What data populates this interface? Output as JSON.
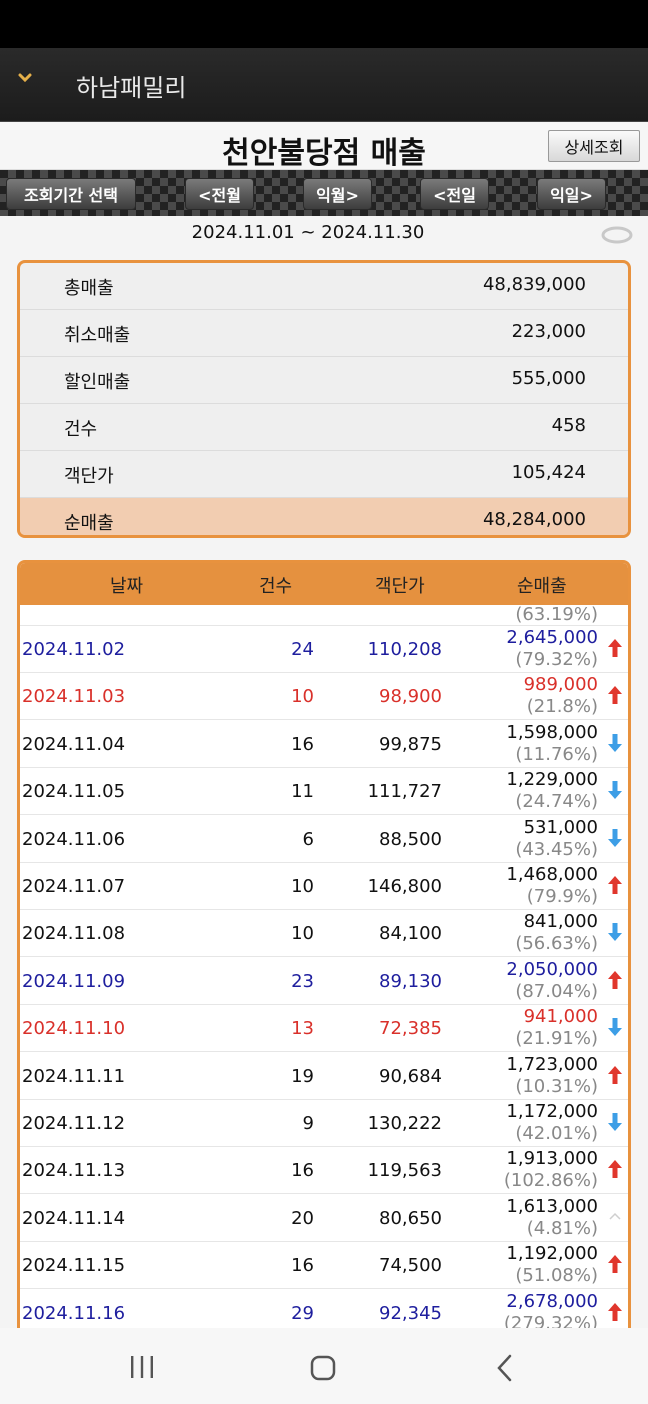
{
  "app": {
    "title": "하남패밀리"
  },
  "header": {
    "title": "천안불당점 매출",
    "detail_label": "상세조회"
  },
  "nav": {
    "period_select": "조회기간 선택",
    "prev_month": "<전월",
    "next_month": "익월>",
    "prev_day": "<전일",
    "next_day": "익일>"
  },
  "date_range": "2024.11.01 ~ 2024.11.30",
  "summary": [
    {
      "label": "총매출",
      "value": "48,839,000"
    },
    {
      "label": "취소매출",
      "value": "223,000"
    },
    {
      "label": "할인매출",
      "value": "555,000"
    },
    {
      "label": "건수",
      "value": "458"
    },
    {
      "label": "객단가",
      "value": "105,424"
    },
    {
      "label": "순매출",
      "value": "48,284,000"
    }
  ],
  "daily_table": {
    "headers": {
      "date": "날짜",
      "count": "건수",
      "avg": "객단가",
      "net": "순매출"
    },
    "partial_top": {
      "pct": "(63.19%)"
    },
    "rows": [
      {
        "date": "2024.11.02",
        "count": "24",
        "avg": "110,208",
        "net": "2,645,000",
        "pct": "(79.32%)",
        "day": "saturday",
        "trend": "up"
      },
      {
        "date": "2024.11.03",
        "count": "10",
        "avg": "98,900",
        "net": "989,000",
        "pct": "(21.8%)",
        "day": "sunday",
        "trend": "up"
      },
      {
        "date": "2024.11.04",
        "count": "16",
        "avg": "99,875",
        "net": "1,598,000",
        "pct": "(11.76%)",
        "day": "weekday",
        "trend": "down"
      },
      {
        "date": "2024.11.05",
        "count": "11",
        "avg": "111,727",
        "net": "1,229,000",
        "pct": "(24.74%)",
        "day": "weekday",
        "trend": "down"
      },
      {
        "date": "2024.11.06",
        "count": "6",
        "avg": "88,500",
        "net": "531,000",
        "pct": "(43.45%)",
        "day": "weekday",
        "trend": "down"
      },
      {
        "date": "2024.11.07",
        "count": "10",
        "avg": "146,800",
        "net": "1,468,000",
        "pct": "(79.9%)",
        "day": "weekday",
        "trend": "up"
      },
      {
        "date": "2024.11.08",
        "count": "10",
        "avg": "84,100",
        "net": "841,000",
        "pct": "(56.63%)",
        "day": "weekday",
        "trend": "down"
      },
      {
        "date": "2024.11.09",
        "count": "23",
        "avg": "89,130",
        "net": "2,050,000",
        "pct": "(87.04%)",
        "day": "saturday",
        "trend": "up"
      },
      {
        "date": "2024.11.10",
        "count": "13",
        "avg": "72,385",
        "net": "941,000",
        "pct": "(21.91%)",
        "day": "sunday",
        "trend": "down"
      },
      {
        "date": "2024.11.11",
        "count": "19",
        "avg": "90,684",
        "net": "1,723,000",
        "pct": "(10.31%)",
        "day": "weekday",
        "trend": "up"
      },
      {
        "date": "2024.11.12",
        "count": "9",
        "avg": "130,222",
        "net": "1,172,000",
        "pct": "(42.01%)",
        "day": "weekday",
        "trend": "down"
      },
      {
        "date": "2024.11.13",
        "count": "16",
        "avg": "119,563",
        "net": "1,913,000",
        "pct": "(102.86%)",
        "day": "weekday",
        "trend": "up"
      },
      {
        "date": "2024.11.14",
        "count": "20",
        "avg": "80,650",
        "net": "1,613,000",
        "pct": "(4.81%)",
        "day": "weekday",
        "trend": "flat"
      },
      {
        "date": "2024.11.15",
        "count": "16",
        "avg": "74,500",
        "net": "1,192,000",
        "pct": "(51.08%)",
        "day": "weekday",
        "trend": "up"
      },
      {
        "date": "2024.11.16",
        "count": "29",
        "avg": "92,345",
        "net": "2,678,000",
        "pct": "(279.32%)",
        "day": "saturday",
        "trend": "up"
      }
    ]
  },
  "colors": {
    "accent": "#e8923e",
    "net_row_bg": "#f2cdb1",
    "saturday": "#1e1e9e",
    "sunday": "#d9302a",
    "arrow_up": "#e0362c",
    "arrow_down": "#3d9ee6"
  },
  "icons": {
    "menu": "chevron-down-icon",
    "refresh": "refresh-icon",
    "recents": "recents-icon",
    "home": "home-icon",
    "back": "back-icon"
  }
}
